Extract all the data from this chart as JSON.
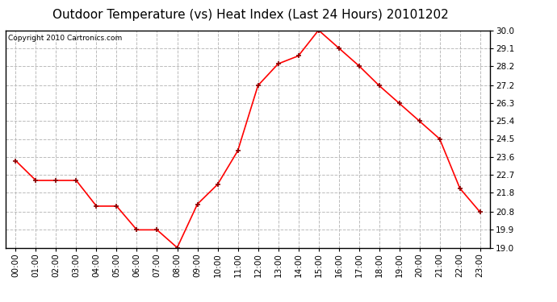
{
  "title": "Outdoor Temperature (vs) Heat Index (Last 24 Hours) 20101202",
  "copyright": "Copyright 2010 Cartronics.com",
  "x_labels": [
    "00:00",
    "01:00",
    "02:00",
    "03:00",
    "04:00",
    "05:00",
    "06:00",
    "07:00",
    "08:00",
    "09:00",
    "10:00",
    "11:00",
    "12:00",
    "13:00",
    "14:00",
    "15:00",
    "16:00",
    "17:00",
    "18:00",
    "19:00",
    "20:00",
    "21:00",
    "22:00",
    "23:00"
  ],
  "y_values": [
    23.4,
    22.4,
    22.4,
    22.4,
    21.1,
    21.1,
    19.9,
    19.9,
    19.0,
    21.2,
    22.2,
    23.9,
    27.2,
    28.3,
    28.7,
    30.0,
    29.1,
    28.2,
    27.2,
    26.3,
    25.4,
    24.5,
    22.0,
    20.8
  ],
  "line_color": "#ff0000",
  "marker": "+",
  "marker_color": "#880000",
  "bg_color": "#ffffff",
  "plot_bg_color": "#ffffff",
  "grid_color": "#bbbbbb",
  "grid_style": "--",
  "ylim_min": 19.0,
  "ylim_max": 30.0,
  "yticks": [
    19.0,
    19.9,
    20.8,
    21.8,
    22.7,
    23.6,
    24.5,
    25.4,
    26.3,
    27.2,
    28.2,
    29.1,
    30.0
  ],
  "title_fontsize": 11,
  "copyright_fontsize": 6.5,
  "tick_fontsize": 7.5,
  "title_color": "#000000",
  "spine_color": "#000000"
}
